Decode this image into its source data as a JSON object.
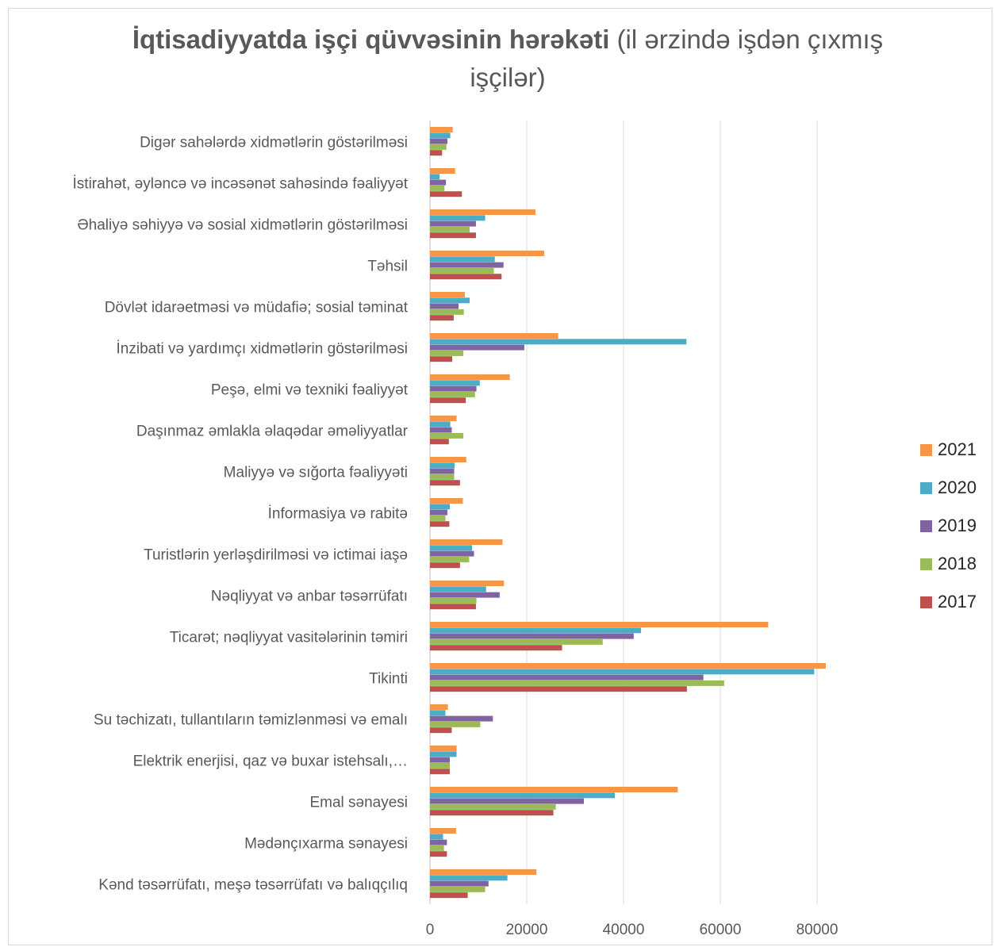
{
  "chart_data": {
    "type": "bar",
    "orientation": "horizontal",
    "title_bold": "İqtisadiyyatda işçi qüvvəsinin hərəkəti",
    "title_rest": "(il ərzində işdən çıxmış işçilər)",
    "xlabel": "",
    "ylabel": "",
    "xlim": [
      0,
      80000
    ],
    "x_ticks": [
      "0",
      "20000",
      "40000",
      "60000",
      "80000"
    ],
    "grid": "vertical",
    "legend_position": "right",
    "categories": [
      "Digər sahələrdə xidmətlərin göstərilməsi",
      "İstirahət, əyləncə və incəsənət sahəsində fəaliyyət",
      "Əhaliyə səhiyyə və sosial xidmətlərin göstərilməsi",
      "Təhsil",
      "Dövlət idarəetməsi və müdafiə; sosial təminat",
      "İnzibati və yardımçı xidmətlərin göstərilməsi",
      "Peşə, elmi və texniki fəaliyyət",
      "Daşınmaz əmlakla əlaqədar əməliyyatlar",
      "Maliyyə və sığorta fəaliyyəti",
      "İnformasiya və rabitə",
      "Turistlərin yerləşdirilməsi və ictimai iaşə",
      "Nəqliyyat və anbar təsərrüfatı",
      "Ticarət; nəqliyyat vasitələrinin  təmiri",
      "Tikinti",
      "Su təchizatı, tullantıların təmizlənməsi və emalı",
      "Elektrik enerjisi, qaz və buxar istehsalı,…",
      "Emal sənayesi",
      "Mədənçıxarma sənayesi",
      "Kənd təsərrüfatı, meşə təsərrüfatı və balıqçılıq"
    ],
    "series": [
      {
        "name": "2021",
        "color": "#F79646",
        "values": [
          4700,
          5200,
          21800,
          23600,
          7200,
          26500,
          16500,
          5500,
          7500,
          6800,
          15000,
          15300,
          69900,
          81800,
          3700,
          5500,
          51200,
          5400,
          22000
        ]
      },
      {
        "name": "2020",
        "color": "#4BACC6",
        "values": [
          4200,
          2000,
          11400,
          13400,
          8200,
          53000,
          10300,
          4200,
          5100,
          4100,
          8700,
          11600,
          43600,
          79400,
          3200,
          5500,
          38200,
          2700,
          16000
        ]
      },
      {
        "name": "2019",
        "color": "#8064A2",
        "values": [
          3600,
          3300,
          9500,
          15200,
          5900,
          19500,
          9600,
          4500,
          5000,
          3600,
          9100,
          14400,
          42100,
          56500,
          13000,
          4100,
          31800,
          3500,
          12100
        ]
      },
      {
        "name": "2018",
        "color": "#9BBB59",
        "values": [
          3400,
          3000,
          8200,
          13200,
          7000,
          6900,
          9300,
          6900,
          5000,
          3200,
          8100,
          9600,
          35700,
          60800,
          10400,
          4100,
          26000,
          2900,
          11400
        ]
      },
      {
        "name": "2017",
        "color": "#C0504D",
        "values": [
          2500,
          6600,
          9500,
          14800,
          4900,
          4600,
          7400,
          3900,
          6200,
          4000,
          6200,
          9500,
          27300,
          53100,
          4500,
          4100,
          25500,
          3500,
          7800
        ]
      }
    ]
  }
}
